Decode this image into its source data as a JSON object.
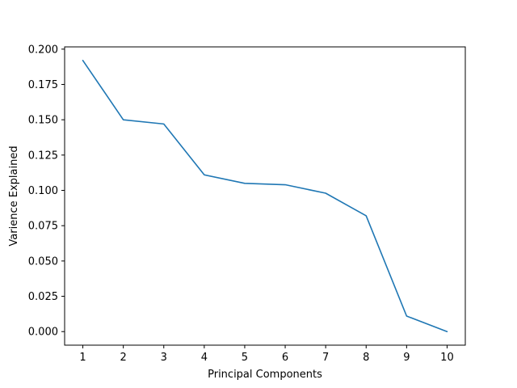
{
  "chart_data": {
    "type": "line",
    "title": "",
    "xlabel": "Principal Components",
    "ylabel": "Varience Explained",
    "x": [
      1,
      2,
      3,
      4,
      5,
      6,
      7,
      8,
      9,
      10
    ],
    "series": [
      {
        "values": [
          0.192,
          0.15,
          0.147,
          0.111,
          0.105,
          0.104,
          0.098,
          0.082,
          0.011,
          0.0
        ],
        "color": "#1f77b4"
      }
    ],
    "xticks": [
      1,
      2,
      3,
      4,
      5,
      6,
      7,
      8,
      9,
      10
    ],
    "yticks": [
      0.0,
      0.025,
      0.05,
      0.075,
      0.1,
      0.125,
      0.15,
      0.175,
      0.2
    ],
    "ytick_labels": [
      "0.000",
      "0.025",
      "0.050",
      "0.075",
      "0.100",
      "0.125",
      "0.150",
      "0.175",
      "0.200"
    ],
    "xlim": [
      0.55,
      10.45
    ],
    "ylim": [
      -0.0096,
      0.2016
    ],
    "grid": false,
    "legend": "none"
  }
}
